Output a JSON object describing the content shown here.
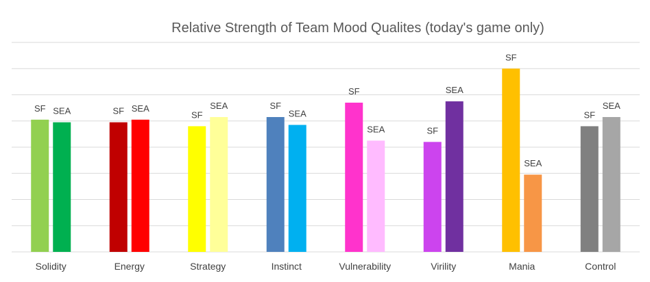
{
  "chart_data": {
    "type": "bar",
    "title": "Relative Strength of Team Mood Qualites (today's game only)",
    "xlabel": "",
    "ylabel": "",
    "ylim": [
      0,
      8
    ],
    "grid": true,
    "legend": "none",
    "categories": [
      "Solidity",
      "Energy",
      "Strategy",
      "Instinct",
      "Vulnerability",
      "Virility",
      "Mania",
      "Control"
    ],
    "series": [
      {
        "bar_label": "SF",
        "values": [
          5.05,
          4.95,
          4.8,
          5.15,
          5.7,
          4.2,
          7.0,
          4.8
        ],
        "colors": [
          "#92d050",
          "#c00000",
          "#ffff00",
          "#4f81bd",
          "#ff33cc",
          "#cc44ee",
          "#ffc000",
          "#808080"
        ]
      },
      {
        "bar_label": "SEA",
        "values": [
          4.95,
          5.05,
          5.15,
          4.85,
          4.25,
          5.75,
          2.95,
          5.15
        ],
        "colors": [
          "#00b050",
          "#ff0000",
          "#ffff99",
          "#00b0f0",
          "#ffbbff",
          "#7030a0",
          "#f79646",
          "#a6a6a6"
        ]
      }
    ]
  }
}
